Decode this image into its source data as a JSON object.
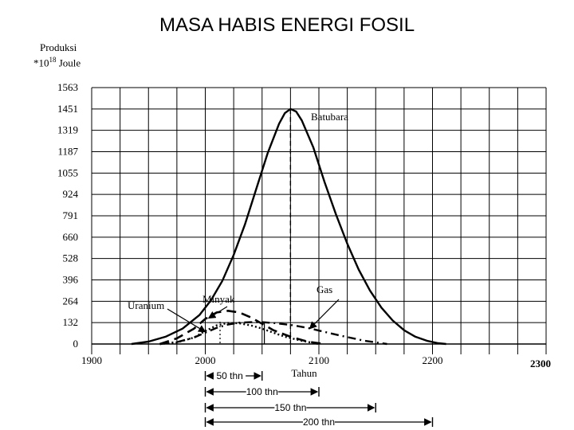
{
  "page": {
    "title": "MASA HABIS ENERGI FOSIL"
  },
  "chart_data": {
    "type": "line",
    "ylabel_line1": "Produksi",
    "ylabel_line2_prefix": "*10",
    "ylabel_line2_exp": "18",
    "ylabel_line2_suffix": " Joule",
    "xlabel": "Tahun",
    "y_ticks": [
      0,
      132,
      264,
      396,
      528,
      660,
      791,
      924,
      1055,
      1187,
      1319,
      1451,
      1563
    ],
    "x_ticks": [
      1900,
      2000,
      2100,
      2200
    ],
    "x_extra_tick": "2300",
    "xlim": [
      1900,
      2300
    ],
    "ylim": [
      0,
      1563
    ],
    "grid": true,
    "series": [
      {
        "name": "Batubara",
        "style": "solid",
        "x": [
          1935,
          1950,
          1965,
          1980,
          1995,
          2005,
          2015,
          2025,
          2035,
          2045,
          2055,
          2065,
          2070,
          2075,
          2080,
          2085,
          2095,
          2105,
          2115,
          2125,
          2135,
          2145,
          2155,
          2165,
          2175,
          2185,
          2195,
          2205,
          2212
        ],
        "y": [
          0,
          15,
          45,
          95,
          180,
          270,
          390,
          550,
          740,
          960,
          1180,
          1360,
          1425,
          1451,
          1435,
          1380,
          1215,
          1000,
          800,
          620,
          460,
          330,
          225,
          145,
          85,
          45,
          20,
          5,
          0
        ]
      },
      {
        "name": "Minyak",
        "style": "dashed",
        "x": [
          1960,
          1975,
          1990,
          2000,
          2010,
          2020,
          2030,
          2040,
          2050,
          2060,
          2075,
          2090,
          2105
        ],
        "y": [
          0,
          35,
          95,
          155,
          195,
          205,
          195,
          165,
          125,
          85,
          45,
          15,
          0
        ]
      },
      {
        "name": "Gas",
        "style": "dash-dot",
        "x": [
          1960,
          1975,
          1990,
          2000,
          2010,
          2020,
          2030,
          2040,
          2050,
          2060,
          2075,
          2090,
          2105,
          2120,
          2140,
          2160
        ],
        "y": [
          0,
          12,
          40,
          70,
          100,
          120,
          132,
          135,
          135,
          130,
          118,
          100,
          75,
          50,
          20,
          0
        ]
      },
      {
        "name": "Uranium",
        "style": "dotted",
        "x": [
          1960,
          1975,
          1990,
          2000,
          2010,
          2020,
          2030,
          2040,
          2050,
          2060,
          2070,
          2085,
          2100
        ],
        "y": [
          0,
          10,
          40,
          80,
          115,
          130,
          128,
          115,
          95,
          70,
          45,
          20,
          0
        ]
      }
    ],
    "peak_lines": [
      2013,
      2052,
      2075
    ],
    "annotations": [
      {
        "text": "Batubara",
        "target": "Batubara"
      },
      {
        "text": "Minyak",
        "target": "Minyak"
      },
      {
        "text": "Gas",
        "target": "Gas"
      },
      {
        "text": "Uranium",
        "target": "Uranium"
      }
    ],
    "spans": [
      {
        "text": "50 thn",
        "from": 2000,
        "to": 2050
      },
      {
        "text": "100 thn",
        "from": 2000,
        "to": 2100
      },
      {
        "text": "150 thn",
        "from": 2000,
        "to": 2150
      },
      {
        "text": "200 thn",
        "from": 2000,
        "to": 2200
      }
    ]
  }
}
